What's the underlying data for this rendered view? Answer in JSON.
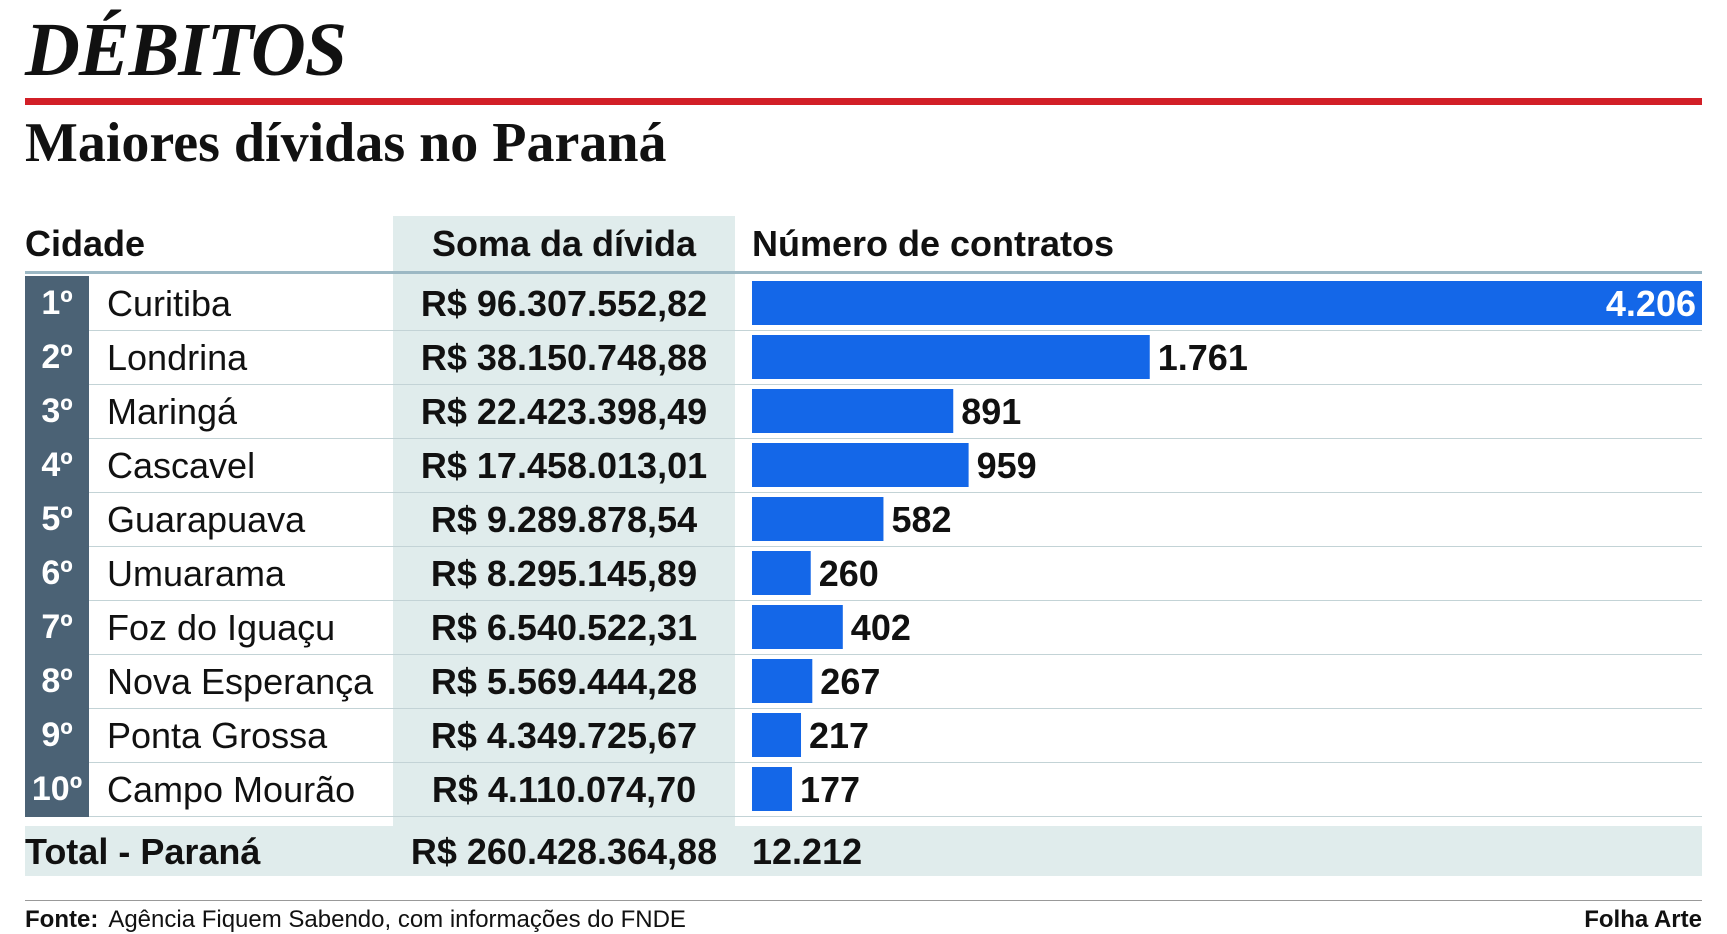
{
  "header": {
    "kicker": "DÉBITOS",
    "title": "Maiores dívidas no Paraná"
  },
  "columns": {
    "city": "Cidade",
    "sum": "Soma da dívida",
    "count": "Número de contratos"
  },
  "chart_data": {
    "type": "table",
    "title": "Maiores dívidas no Paraná",
    "columns": [
      "Cidade",
      "Soma da dívida",
      "Número de contratos"
    ],
    "rows": [
      {
        "rank": "1º",
        "city": "Curitiba",
        "sum": "R$ 96.307.552,82",
        "count": 4206,
        "count_label": "4.206"
      },
      {
        "rank": "2º",
        "city": "Londrina",
        "sum": "R$ 38.150.748,88",
        "count": 1761,
        "count_label": "1.761"
      },
      {
        "rank": "3º",
        "city": "Maringá",
        "sum": "R$ 22.423.398,49",
        "count": 891,
        "count_label": "891"
      },
      {
        "rank": "4º",
        "city": "Cascavel",
        "sum": "R$ 17.458.013,01",
        "count": 959,
        "count_label": "959"
      },
      {
        "rank": "5º",
        "city": "Guarapuava",
        "sum": "R$ 9.289.878,54",
        "count": 582,
        "count_label": "582"
      },
      {
        "rank": "6º",
        "city": "Umuarama",
        "sum": "R$ 8.295.145,89",
        "count": 260,
        "count_label": "260"
      },
      {
        "rank": "7º",
        "city": "Foz do Iguaçu",
        "sum": "R$ 6.540.522,31",
        "count": 402,
        "count_label": "402"
      },
      {
        "rank": "8º",
        "city": "Nova Esperança",
        "sum": "R$ 5.569.444,28",
        "count": 267,
        "count_label": "267"
      },
      {
        "rank": "9º",
        "city": "Ponta Grossa",
        "sum": "R$ 4.349.725,67",
        "count": 217,
        "count_label": "217"
      },
      {
        "rank": "10º",
        "city": "Campo Mourão",
        "sum": "R$ 4.110.074,70",
        "count": 177,
        "count_label": "177"
      }
    ],
    "total": {
      "label": "Total - Paraná",
      "sum": "R$ 260.428.364,88",
      "count": 12212,
      "count_label": "12.212"
    },
    "bar_color": "#1467e8"
  },
  "footer": {
    "source_label": "Fonte:",
    "source_text": "Agência Fiquem Sabendo, com informações do FNDE",
    "credit": "Folha Arte"
  }
}
